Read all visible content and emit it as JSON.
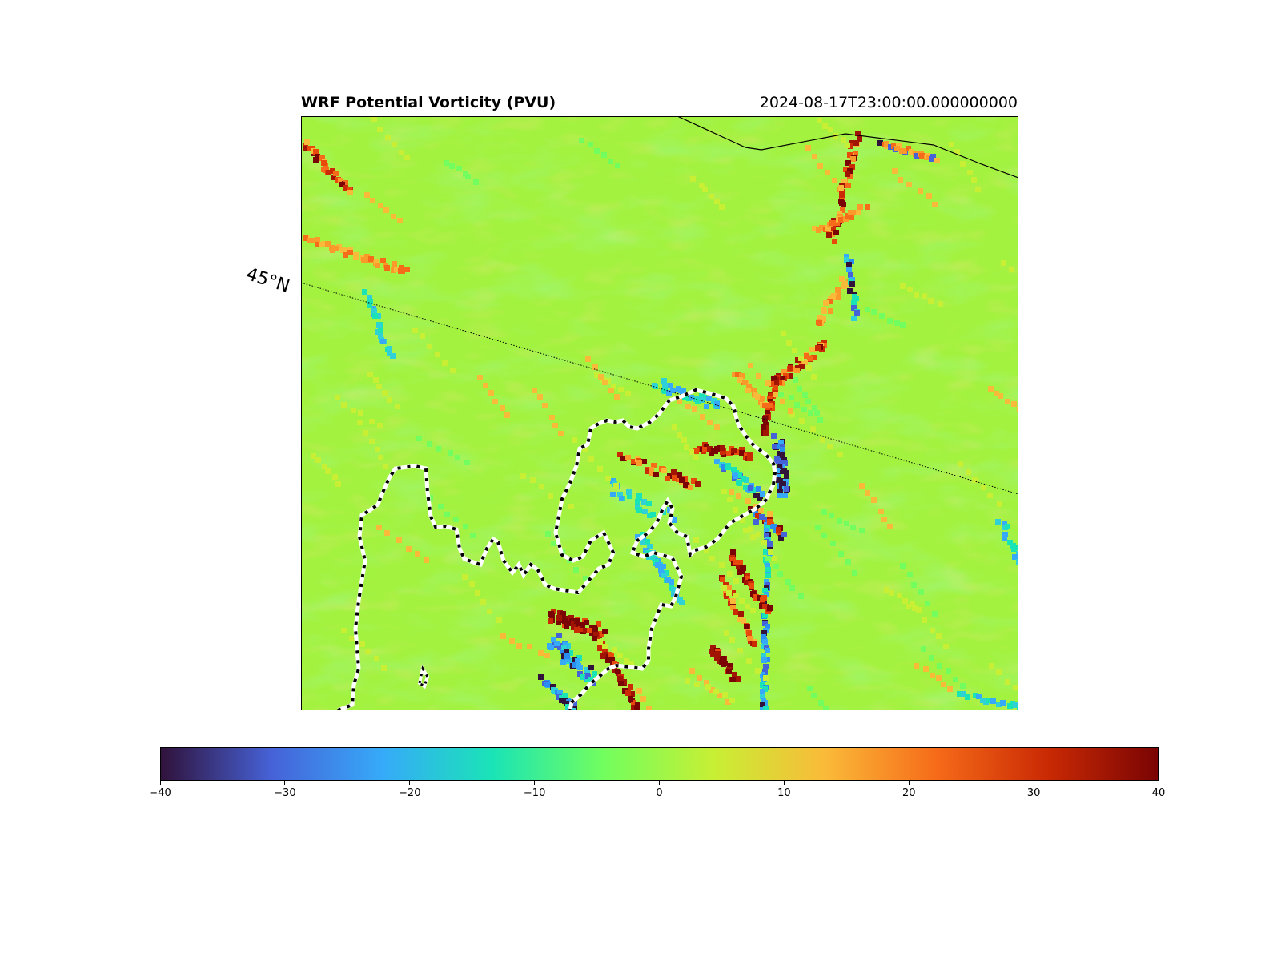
{
  "figure": {
    "title": "WRF Potential Vorticity (PVU)",
    "timestamp": "2024-08-17T23:00:00.000000000"
  },
  "map": {
    "graticule_label": "45°N",
    "field": "potential_vorticity",
    "units": "PVU",
    "features": [
      "coastline",
      "state-border-dashed",
      "latitude-line-dotted"
    ]
  },
  "colorbar": {
    "colormap": "turbo",
    "vmin": -40,
    "vmax": 40,
    "ticks": [
      "−40",
      "−30",
      "−20",
      "−10",
      "0",
      "10",
      "20",
      "30",
      "40"
    ],
    "tick_values": [
      -40,
      -30,
      -20,
      -10,
      0,
      10,
      20,
      30,
      40
    ],
    "colors": [
      "#30123b",
      "#4662d7",
      "#36aaf9",
      "#1ae4b6",
      "#72fe5e",
      "#c8ef34",
      "#faba39",
      "#f66b19",
      "#ca2a04",
      "#7a0403"
    ]
  },
  "chart_data": {
    "type": "heatmap",
    "title": "WRF Potential Vorticity (PVU)",
    "subtitle": "2024-08-17T23:00:00.000000000",
    "value_range": [
      -40,
      40
    ],
    "background_value": 2,
    "annotations": [
      "45°N"
    ]
  }
}
